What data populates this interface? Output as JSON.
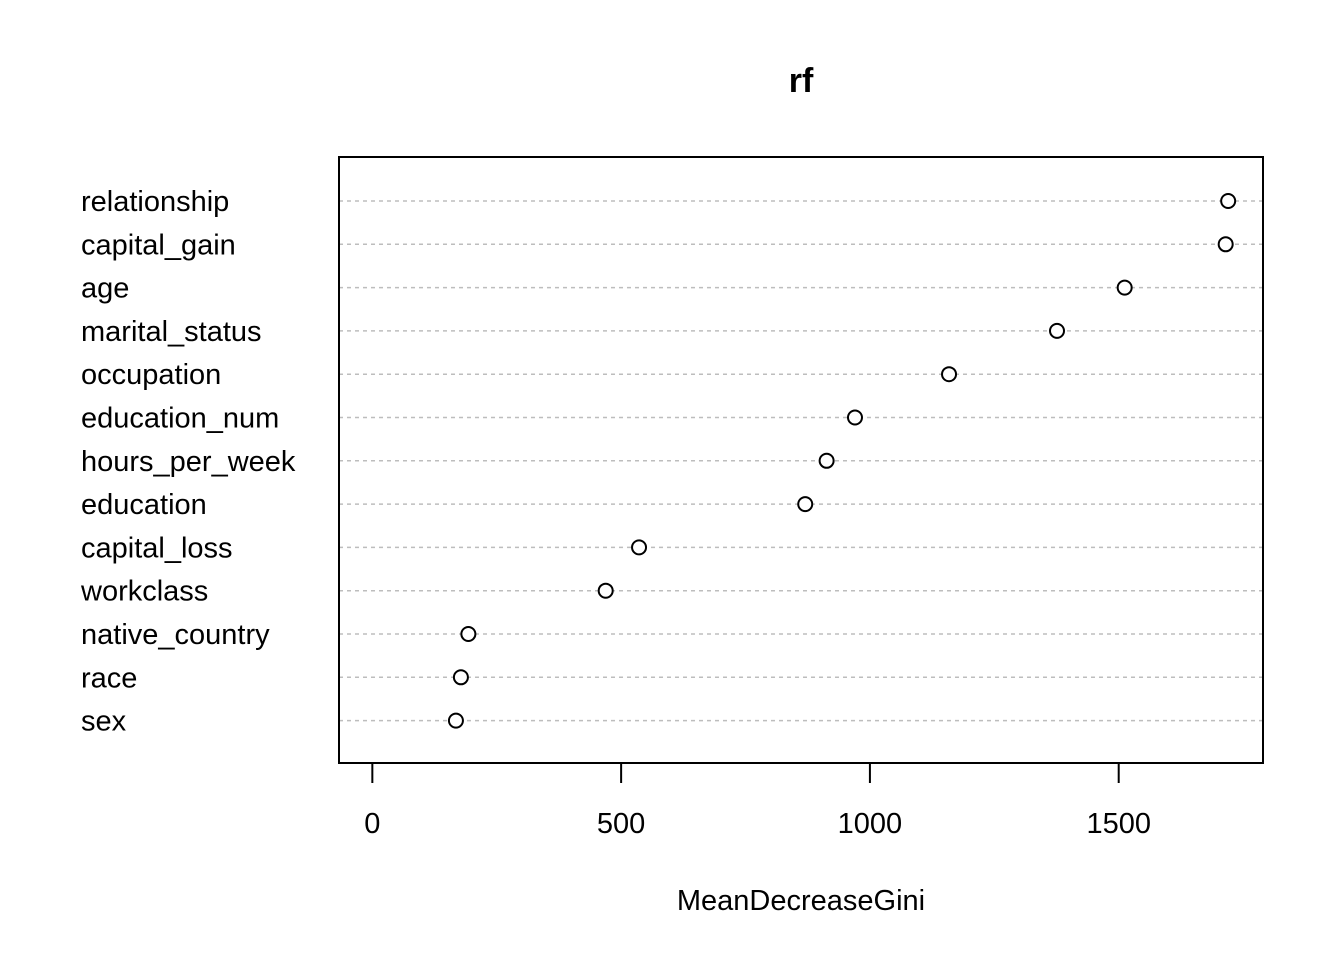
{
  "chart_data": {
    "type": "scatter",
    "title": "rf",
    "xlabel": "MeanDecreaseGini",
    "ylabel": "",
    "xlim": [
      -67,
      1790
    ],
    "xticks": [
      0,
      500,
      1000,
      1500
    ],
    "grid": "horizontal-dotted",
    "categories": [
      "relationship",
      "capital_gain",
      "age",
      "marital_status",
      "occupation",
      "education_num",
      "hours_per_week",
      "education",
      "capital_loss",
      "workclass",
      "native_country",
      "race",
      "sex"
    ],
    "values": [
      1720,
      1715,
      1512,
      1376,
      1159,
      970,
      913,
      870,
      536,
      469,
      193,
      178,
      168
    ]
  }
}
